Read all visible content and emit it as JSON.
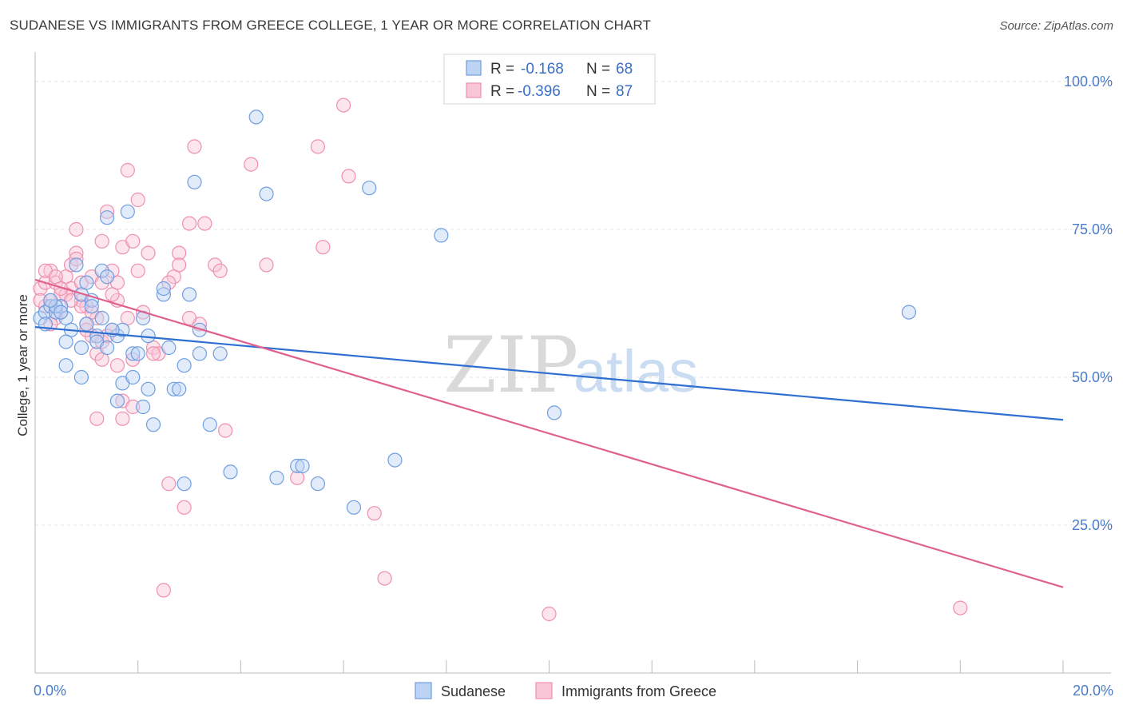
{
  "title": "SUDANESE VS IMMIGRANTS FROM GREECE COLLEGE, 1 YEAR OR MORE CORRELATION CHART",
  "source": "Source: ZipAtlas.com",
  "watermark": {
    "zip": "ZIP",
    "atlas": "atlas"
  },
  "legend": {
    "rows": [
      {
        "r_label": "R =",
        "r_value": "-0.168",
        "n_label": "N =",
        "n_value": "68"
      },
      {
        "r_label": "R =",
        "r_value": "-0.396",
        "n_label": "N =",
        "n_value": "87"
      }
    ]
  },
  "chart_data": {
    "type": "scatter",
    "title": "SUDANESE VS IMMIGRANTS FROM GREECE COLLEGE, 1 YEAR OR MORE CORRELATION CHART",
    "xlabel": "",
    "ylabel": "College, 1 year or more",
    "xlim": [
      0,
      20
    ],
    "ylim": [
      0,
      105
    ],
    "x_tick_labels": [
      "0.0%",
      "20.0%"
    ],
    "y_ticks": [
      25,
      50,
      75,
      100
    ],
    "y_tick_labels": [
      "25.0%",
      "50.0%",
      "75.0%",
      "100.0%"
    ],
    "grid": true,
    "legend_position": "top-center",
    "colors": {
      "sudanese": "#6f9ee0",
      "greece": "#f08fb0",
      "sudanese_line": "#2f6fd1",
      "greece_line": "#e0608e"
    },
    "series": [
      {
        "name": "Sudanese",
        "r": -0.168,
        "n": 68,
        "trend": {
          "x0": 0,
          "y0": 58.5,
          "x1": 20,
          "y1": 42.8
        },
        "points": [
          [
            0.1,
            60
          ],
          [
            0.2,
            61
          ],
          [
            0.3,
            62
          ],
          [
            0.4,
            61
          ],
          [
            0.5,
            62
          ],
          [
            0.6,
            60
          ],
          [
            0.7,
            58
          ],
          [
            0.9,
            64
          ],
          [
            0.8,
            69
          ],
          [
            1.0,
            66
          ],
          [
            1.1,
            63
          ],
          [
            1.2,
            57
          ],
          [
            1.3,
            60
          ],
          [
            1.3,
            68
          ],
          [
            1.4,
            67
          ],
          [
            0.6,
            52
          ],
          [
            0.9,
            50
          ],
          [
            0.9,
            55
          ],
          [
            1.2,
            56
          ],
          [
            1.4,
            55
          ],
          [
            1.6,
            57
          ],
          [
            1.7,
            58
          ],
          [
            1.7,
            49
          ],
          [
            1.9,
            50
          ],
          [
            1.9,
            54
          ],
          [
            2.0,
            54
          ],
          [
            2.1,
            60
          ],
          [
            2.2,
            48
          ],
          [
            2.1,
            45
          ],
          [
            1.6,
            46
          ],
          [
            2.2,
            57
          ],
          [
            2.3,
            42
          ],
          [
            2.5,
            64
          ],
          [
            2.5,
            65
          ],
          [
            2.6,
            55
          ],
          [
            2.7,
            48
          ],
          [
            2.8,
            48
          ],
          [
            2.9,
            32
          ],
          [
            3.0,
            64
          ],
          [
            3.1,
            83
          ],
          [
            3.2,
            58
          ],
          [
            3.2,
            54
          ],
          [
            3.4,
            42
          ],
          [
            3.6,
            54
          ],
          [
            3.8,
            34
          ],
          [
            4.3,
            94
          ],
          [
            4.5,
            81
          ],
          [
            4.7,
            33
          ],
          [
            5.1,
            35
          ],
          [
            5.2,
            35
          ],
          [
            5.5,
            32
          ],
          [
            6.2,
            28
          ],
          [
            6.5,
            82
          ],
          [
            7.0,
            36
          ],
          [
            7.9,
            74
          ],
          [
            10.1,
            44
          ],
          [
            17.0,
            61
          ],
          [
            1.4,
            77
          ],
          [
            1.8,
            78
          ],
          [
            0.4,
            62
          ],
          [
            0.3,
            63
          ],
          [
            0.2,
            59
          ],
          [
            0.5,
            61
          ],
          [
            1.0,
            59
          ],
          [
            1.1,
            62
          ],
          [
            0.6,
            56
          ],
          [
            2.9,
            52
          ],
          [
            1.5,
            58
          ]
        ]
      },
      {
        "name": "Immigrants from Greece",
        "r": -0.396,
        "n": 87,
        "trend": {
          "x0": 0,
          "y0": 66.5,
          "x1": 20,
          "y1": 14.5
        },
        "points": [
          [
            0.1,
            65
          ],
          [
            0.2,
            66
          ],
          [
            0.3,
            68
          ],
          [
            0.3,
            63
          ],
          [
            0.4,
            66
          ],
          [
            0.5,
            64
          ],
          [
            0.5,
            61
          ],
          [
            0.6,
            67
          ],
          [
            0.7,
            65
          ],
          [
            0.7,
            69
          ],
          [
            0.8,
            71
          ],
          [
            0.8,
            75
          ],
          [
            0.9,
            66
          ],
          [
            0.9,
            63
          ],
          [
            1.0,
            62
          ],
          [
            1.0,
            59
          ],
          [
            1.1,
            67
          ],
          [
            1.1,
            57
          ],
          [
            1.2,
            60
          ],
          [
            1.2,
            54
          ],
          [
            1.3,
            73
          ],
          [
            1.3,
            56
          ],
          [
            1.3,
            53
          ],
          [
            1.4,
            78
          ],
          [
            1.5,
            68
          ],
          [
            1.5,
            58
          ],
          [
            1.6,
            66
          ],
          [
            1.6,
            63
          ],
          [
            1.7,
            72
          ],
          [
            1.7,
            46
          ],
          [
            1.8,
            85
          ],
          [
            1.8,
            60
          ],
          [
            1.9,
            45
          ],
          [
            1.9,
            73
          ],
          [
            2.0,
            80
          ],
          [
            2.0,
            68
          ],
          [
            2.1,
            61
          ],
          [
            2.2,
            71
          ],
          [
            2.3,
            55
          ],
          [
            2.4,
            54
          ],
          [
            2.5,
            14
          ],
          [
            2.6,
            32
          ],
          [
            2.7,
            67
          ],
          [
            2.8,
            71
          ],
          [
            2.8,
            69
          ],
          [
            2.9,
            28
          ],
          [
            3.0,
            76
          ],
          [
            3.1,
            89
          ],
          [
            3.2,
            59
          ],
          [
            3.3,
            76
          ],
          [
            3.5,
            69
          ],
          [
            3.6,
            68
          ],
          [
            3.7,
            41
          ],
          [
            4.2,
            86
          ],
          [
            4.5,
            69
          ],
          [
            5.1,
            33
          ],
          [
            5.5,
            89
          ],
          [
            5.6,
            72
          ],
          [
            6.0,
            96
          ],
          [
            6.1,
            84
          ],
          [
            6.6,
            27
          ],
          [
            6.8,
            16
          ],
          [
            10.0,
            10
          ],
          [
            18.0,
            11
          ],
          [
            0.2,
            62
          ],
          [
            0.4,
            60
          ],
          [
            0.6,
            64
          ],
          [
            0.9,
            62
          ],
          [
            1.1,
            61
          ],
          [
            1.4,
            57
          ],
          [
            1.6,
            52
          ],
          [
            1.2,
            43
          ],
          [
            1.7,
            43
          ],
          [
            0.3,
            59
          ],
          [
            0.5,
            65
          ],
          [
            0.7,
            63
          ],
          [
            0.2,
            68
          ],
          [
            1.0,
            58
          ],
          [
            1.3,
            66
          ],
          [
            2.3,
            54
          ],
          [
            0.8,
            70
          ],
          [
            0.4,
            67
          ],
          [
            1.5,
            64
          ],
          [
            2.6,
            66
          ],
          [
            0.1,
            63
          ],
          [
            1.9,
            53
          ],
          [
            3.0,
            60
          ]
        ]
      }
    ]
  },
  "bottom_legend": [
    {
      "label": "Sudanese"
    },
    {
      "label": "Immigrants from Greece"
    }
  ]
}
